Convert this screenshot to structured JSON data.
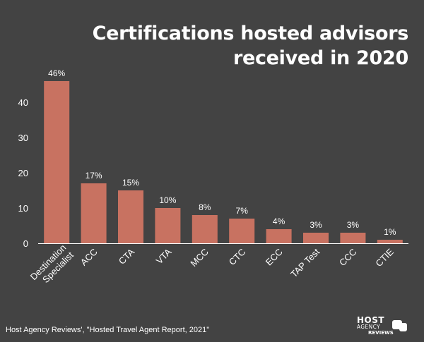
{
  "chart_data": {
    "type": "bar",
    "title_lines": [
      "Certifications hosted advisors",
      "received in 2020"
    ],
    "categories": [
      "Destination Specialist",
      "ACC",
      "CTA",
      "VTA",
      "MCC",
      "CTC",
      "ECC",
      "TAP Test",
      "CCC",
      "CTIE"
    ],
    "values": [
      46,
      17,
      15,
      10,
      8,
      7,
      4,
      3,
      3,
      1
    ],
    "data_labels": [
      "46%",
      "17%",
      "15%",
      "10%",
      "8%",
      "7%",
      "4%",
      "3%",
      "3%",
      "1%"
    ],
    "yticks": [
      "0",
      "10",
      "20",
      "30",
      "40"
    ],
    "ylim": [
      0,
      50
    ],
    "xlabel": "",
    "ylabel": "",
    "grid": false,
    "legend": "none",
    "bar_color": "#c87261"
  },
  "footer": {
    "source": "Host Agency Reviews', \"Hosted Travel Agent Report, 2021\""
  },
  "logo": {
    "line1": "HOST",
    "line2": "AGENCY",
    "line3": "REVIEWS"
  }
}
